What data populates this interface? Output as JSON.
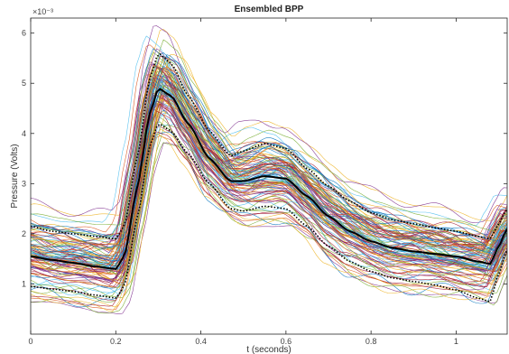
{
  "chart_data": {
    "type": "line",
    "title": "Ensembled BPP",
    "xlabel": "t (seconds)",
    "ylabel": "Pressure (Volts)",
    "y_exponent_label": "×10⁻³",
    "xlim": [
      0,
      1.12
    ],
    "ylim": [
      0,
      6.3
    ],
    "x_ticks": [
      0,
      0.2,
      0.4,
      0.6,
      0.8,
      1
    ],
    "x_tick_labels": [
      "0",
      "0.2",
      "0.4",
      "0.6",
      "0.8",
      "1"
    ],
    "y_ticks": [
      1,
      2,
      3,
      4,
      5,
      6
    ],
    "y_tick_labels": [
      "1",
      "2",
      "3",
      "4",
      "5",
      "6"
    ],
    "grid": false,
    "legend": "none",
    "individual_beats": {
      "count": 110,
      "line_width": 0.6,
      "colors": [
        "#0072BD",
        "#D95319",
        "#EDB120",
        "#7E2F8E",
        "#77AC30",
        "#4DBEEE",
        "#A2142F"
      ]
    },
    "x": [
      0,
      0.05,
      0.1,
      0.15,
      0.2,
      0.22,
      0.25,
      0.28,
      0.3,
      0.33,
      0.37,
      0.42,
      0.47,
      0.5,
      0.55,
      0.6,
      0.65,
      0.7,
      0.75,
      0.8,
      0.85,
      0.9,
      0.95,
      1.0,
      1.05,
      1.08,
      1.1,
      1.12
    ],
    "series": [
      {
        "name": "",
        "color": "#000000",
        "style": "solid",
        "values": [
          1.55,
          1.48,
          1.42,
          1.35,
          1.3,
          1.55,
          2.9,
          4.4,
          4.9,
          4.75,
          4.2,
          3.5,
          3.05,
          3.05,
          3.15,
          3.1,
          2.75,
          2.35,
          2.05,
          1.85,
          1.72,
          1.65,
          1.6,
          1.55,
          1.45,
          1.4,
          1.75,
          2.1
        ]
      },
      {
        "name": "",
        "color": "#000000",
        "style": "dotted",
        "values": [
          2.15,
          2.05,
          2.0,
          1.95,
          1.9,
          2.15,
          3.5,
          5.1,
          5.6,
          5.4,
          4.75,
          4.05,
          3.55,
          3.65,
          3.8,
          3.7,
          3.3,
          2.95,
          2.65,
          2.42,
          2.28,
          2.2,
          2.12,
          2.05,
          1.95,
          1.9,
          2.2,
          2.5
        ]
      },
      {
        "name": "",
        "color": "#000000",
        "style": "dotted",
        "values": [
          0.95,
          0.9,
          0.85,
          0.78,
          0.72,
          0.95,
          2.3,
          3.75,
          4.2,
          4.05,
          3.6,
          3.0,
          2.5,
          2.45,
          2.55,
          2.5,
          2.15,
          1.75,
          1.45,
          1.25,
          1.12,
          1.05,
          0.98,
          0.88,
          0.72,
          0.65,
          1.2,
          1.7
        ]
      }
    ]
  }
}
